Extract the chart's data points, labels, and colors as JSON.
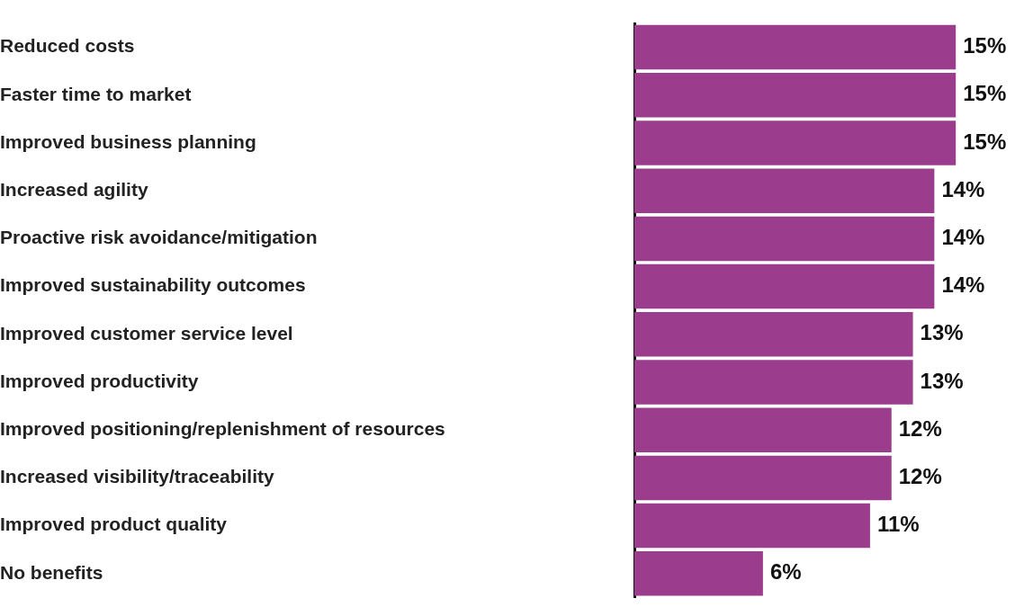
{
  "chart_data": {
    "type": "bar",
    "orientation": "horizontal",
    "categories": [
      "Reduced costs",
      "Faster time to market",
      "Improved business planning",
      "Increased agility",
      "Proactive risk avoidance/mitigation",
      "Improved sustainability outcomes",
      "Improved customer service level",
      "Improved productivity",
      "Improved positioning/replenishment of resources",
      "Increased visibility/traceability",
      "Improved product quality",
      "No benefits"
    ],
    "values": [
      15,
      15,
      15,
      14,
      14,
      14,
      13,
      13,
      12,
      12,
      11,
      6
    ],
    "value_labels": [
      "15%",
      "15%",
      "15%",
      "14%",
      "14%",
      "14%",
      "13%",
      "13%",
      "12%",
      "12%",
      "11%",
      "6%"
    ],
    "color": "#9b3d8c",
    "tick_labels": "y",
    "grid": false,
    "legend": false
  }
}
